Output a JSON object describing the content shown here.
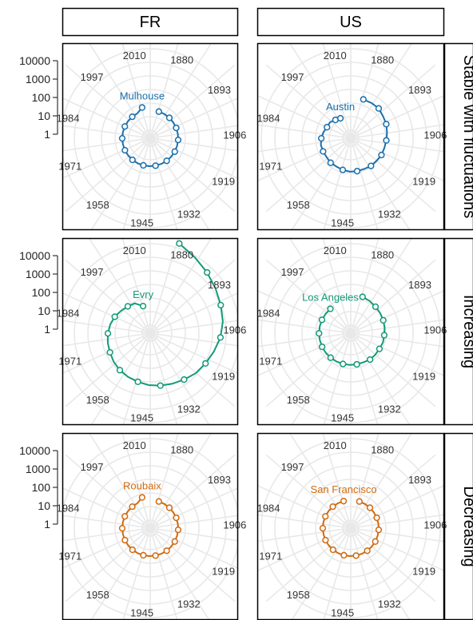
{
  "chart_data": {
    "type": "line",
    "coord": "polar",
    "columns": [
      "FR",
      "US"
    ],
    "rows": [
      "Stable with fluctuations",
      "Increasing",
      "Decreasing"
    ],
    "radial_axis": {
      "scale": "log",
      "ticks": [
        "10000",
        "1000",
        "100",
        "10",
        "1"
      ]
    },
    "angle_axis": {
      "labels": [
        "1880",
        "1893",
        "1906",
        "1919",
        "1932",
        "1945",
        "1958",
        "1971",
        "1984",
        "1997",
        "2010"
      ]
    },
    "grid": true,
    "panels": [
      {
        "column": "FR",
        "row": "Stable with fluctuations",
        "city": "Mulhouse",
        "color": "#1a6fad",
        "x": [
          1880,
          1885,
          1890,
          1895,
          1900,
          1905,
          1910,
          1915,
          1920,
          1925,
          1930,
          1935,
          1940,
          1945,
          1950,
          1955,
          1960,
          1965,
          1970,
          1975,
          1980,
          1985,
          1990,
          1995,
          2000,
          2005,
          2010
        ],
        "y": [
          5,
          5,
          5,
          5,
          5,
          5,
          5,
          5,
          5,
          5,
          5,
          5,
          5,
          5,
          5,
          5,
          5,
          5,
          5,
          5,
          5,
          5,
          5,
          5,
          5,
          5,
          8
        ]
      },
      {
        "column": "US",
        "row": "Stable with fluctuations",
        "city": "Austin",
        "color": "#1a6fad",
        "x": [
          1880,
          1885,
          1890,
          1895,
          1900,
          1905,
          1910,
          1915,
          1920,
          1925,
          1930,
          1935,
          1940,
          1945,
          1950,
          1955,
          1960,
          1965,
          1970,
          1975,
          1980,
          1985,
          1990,
          1995,
          2000,
          2005
        ],
        "y": [
          25,
          25,
          25,
          20,
          18,
          15,
          13,
          12,
          12,
          11,
          11,
          10,
          10,
          10,
          9,
          8,
          8,
          7,
          7,
          7,
          6,
          5,
          4,
          4,
          3,
          2.5
        ]
      },
      {
        "column": "FR",
        "row": "Increasing",
        "city": "Evry",
        "color": "#139a78",
        "x": [
          1880,
          1885,
          1890,
          1895,
          1900,
          1905,
          1910,
          1915,
          1920,
          1925,
          1930,
          1935,
          1940,
          1945,
          1950,
          1955,
          1960,
          1965,
          1970,
          1975,
          1980,
          1985,
          1990,
          1995,
          2000,
          2005,
          2010
        ],
        "y": [
          20000,
          9000,
          5000,
          3000,
          2000,
          1500,
          1000,
          600,
          400,
          300,
          200,
          150,
          120,
          100,
          80,
          70,
          60,
          50,
          40,
          35,
          30,
          25,
          20,
          15,
          12,
          10,
          5
        ]
      },
      {
        "column": "US",
        "row": "Increasing",
        "city": "Los Angeles",
        "color": "#139a78",
        "x": [
          1880,
          1885,
          1890,
          1895,
          1900,
          1905,
          1910,
          1915,
          1920,
          1925,
          1930,
          1935,
          1940,
          1945,
          1950,
          1955,
          1960,
          1965,
          1970,
          1975,
          1980,
          1985,
          1990,
          1995,
          2000
        ],
        "y": [
          18,
          16,
          14,
          13,
          12,
          11,
          10,
          10,
          9,
          9,
          9,
          8,
          8,
          8,
          8,
          8,
          8,
          8,
          8,
          8,
          8,
          8,
          8,
          8,
          8
        ]
      },
      {
        "column": "FR",
        "row": "Decreasing",
        "city": "Roubaix",
        "color": "#d06a10",
        "x": [
          1880,
          1885,
          1890,
          1895,
          1900,
          1905,
          1910,
          1915,
          1920,
          1925,
          1930,
          1935,
          1940,
          1945,
          1950,
          1955,
          1960,
          1965,
          1970,
          1975,
          1980,
          1985,
          1990,
          1995,
          2000,
          2005,
          2010
        ],
        "y": [
          5,
          5,
          5,
          5,
          5,
          5,
          5,
          5,
          5,
          5,
          5,
          5,
          5,
          5,
          5,
          5,
          5,
          5,
          5,
          5,
          5,
          5,
          5,
          5,
          5,
          5,
          8
        ]
      },
      {
        "column": "US",
        "row": "Decreasing",
        "city": "San Francisco",
        "color": "#d06a10",
        "x": [
          1880,
          1885,
          1890,
          1895,
          1900,
          1905,
          1910,
          1915,
          1920,
          1925,
          1930,
          1935,
          1940,
          1945,
          1950,
          1955,
          1960,
          1965,
          1970,
          1975,
          1980,
          1985,
          1990,
          1995,
          2000,
          2005,
          2010
        ],
        "y": [
          5,
          5,
          5,
          5,
          5,
          5,
          5,
          5,
          5,
          5,
          5,
          5,
          5,
          5,
          5,
          5,
          5,
          5,
          5,
          5,
          5,
          5,
          5,
          5,
          5,
          5,
          5
        ]
      }
    ]
  }
}
